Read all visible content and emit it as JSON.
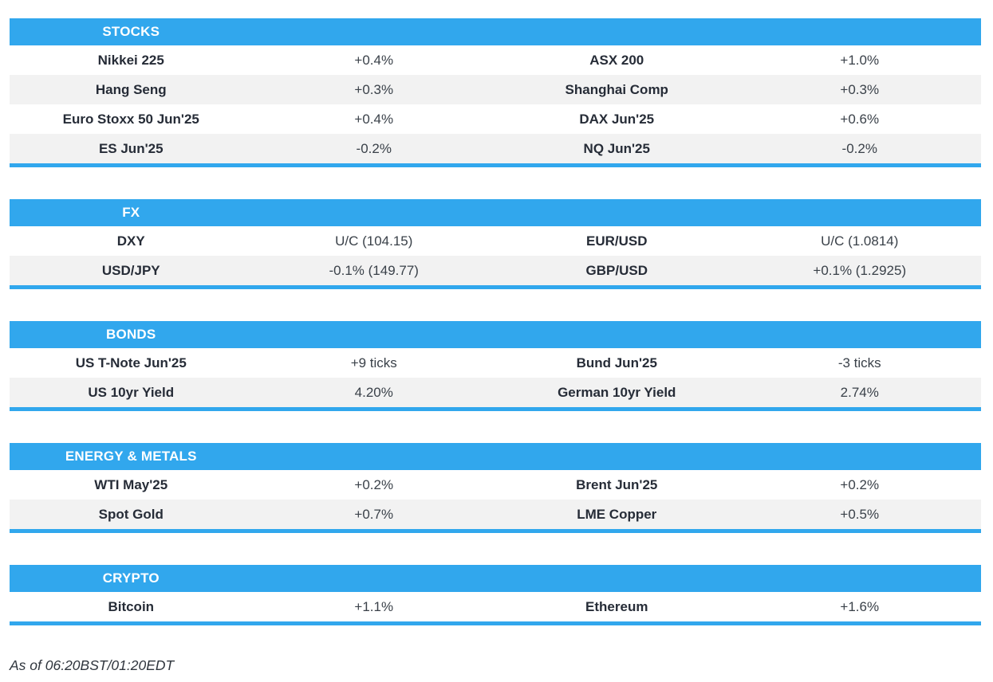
{
  "colors": {
    "accent_blue": "#31A7ED",
    "row_alt_gray": "#F2F2F2",
    "label_text": "#262C37",
    "value_text": "#3A4149"
  },
  "sections": [
    {
      "title": "STOCKS",
      "rows": [
        [
          "Nikkei 225",
          "+0.4%",
          "ASX 200",
          "+1.0%"
        ],
        [
          "Hang Seng",
          "+0.3%",
          "Shanghai Comp",
          "+0.3%"
        ],
        [
          "Euro Stoxx 50 Jun'25",
          "+0.4%",
          "DAX Jun'25",
          "+0.6%"
        ],
        [
          "ES Jun'25",
          "-0.2%",
          "NQ Jun'25",
          "-0.2%"
        ]
      ]
    },
    {
      "title": "FX",
      "rows": [
        [
          "DXY",
          "U/C (104.15)",
          "EUR/USD",
          "U/C (1.0814)"
        ],
        [
          "USD/JPY",
          "-0.1% (149.77)",
          "GBP/USD",
          "+0.1% (1.2925)"
        ]
      ]
    },
    {
      "title": "BONDS",
      "rows": [
        [
          "US T-Note Jun'25",
          "+9 ticks",
          "Bund Jun'25",
          "-3 ticks"
        ],
        [
          "US 10yr Yield",
          "4.20%",
          "German 10yr Yield",
          "2.74%"
        ]
      ]
    },
    {
      "title": "ENERGY & METALS",
      "rows": [
        [
          "WTI May'25",
          "+0.2%",
          "Brent Jun'25",
          "+0.2%"
        ],
        [
          "Spot Gold",
          "+0.7%",
          "LME Copper",
          "+0.5%"
        ]
      ]
    },
    {
      "title": "CRYPTO",
      "rows": [
        [
          "Bitcoin",
          "+1.1%",
          "Ethereum",
          "+1.6%"
        ]
      ]
    }
  ],
  "footer": {
    "as_of": "As of 06:20BST/01:20EDT"
  }
}
